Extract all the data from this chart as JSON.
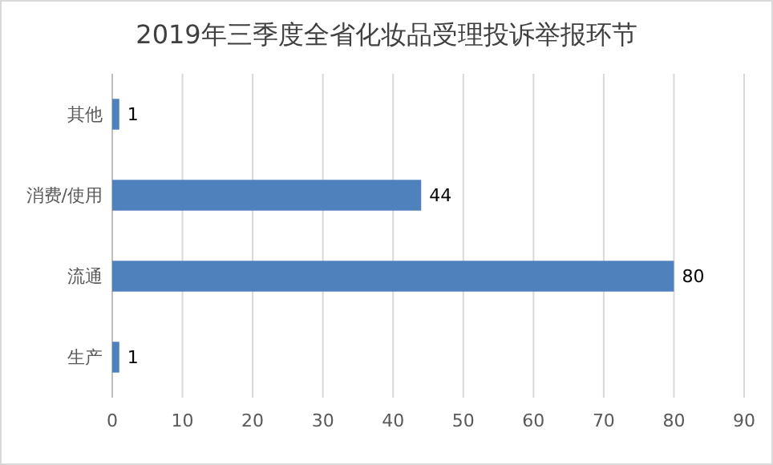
{
  "chart_data": {
    "type": "bar",
    "orientation": "horizontal",
    "title": "2019年三季度全省化妆品受理投诉举报环节",
    "categories": [
      "其他",
      "消费/使用",
      "流通",
      "生产"
    ],
    "values": [
      1,
      44,
      80,
      1
    ],
    "color": "#4f81bd",
    "xlim": [
      0,
      90
    ],
    "xticks": [
      0,
      10,
      20,
      30,
      40,
      50,
      60,
      70,
      80,
      90
    ],
    "grid": "x",
    "data_labels": true
  }
}
